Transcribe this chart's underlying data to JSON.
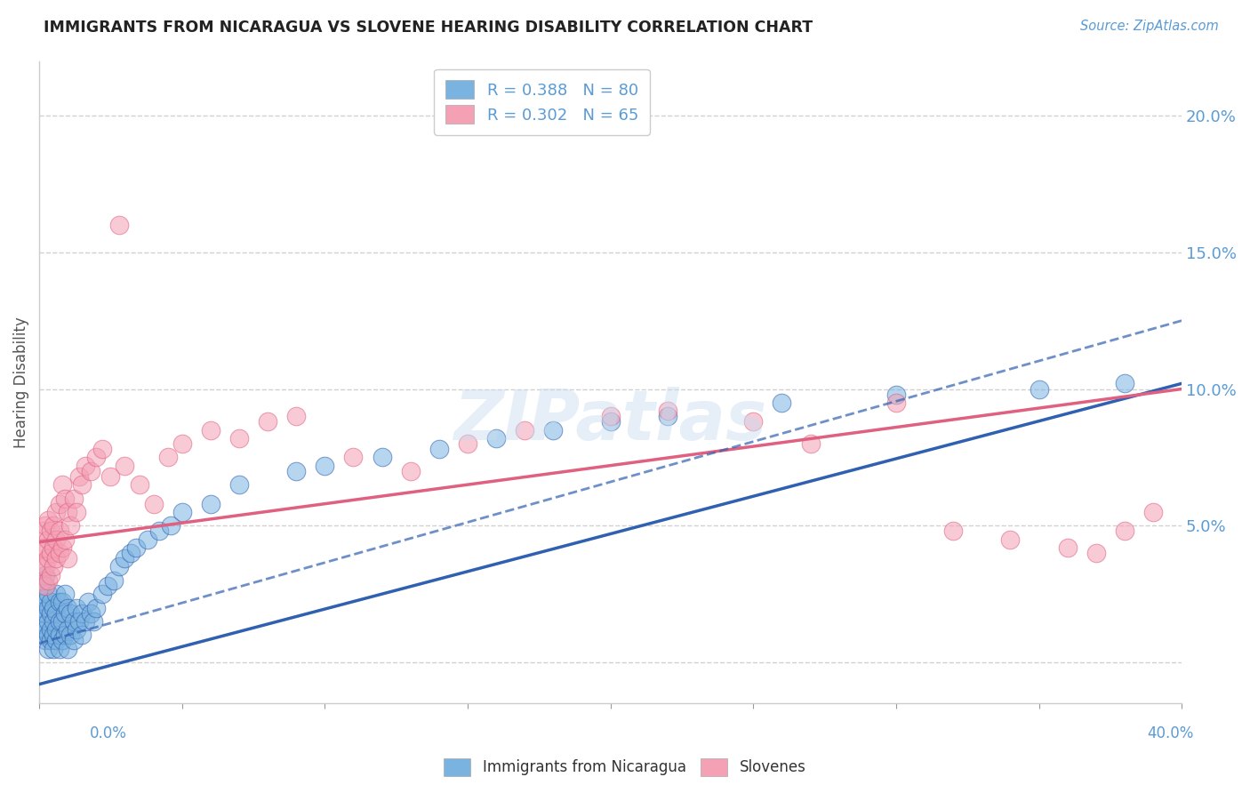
{
  "title": "IMMIGRANTS FROM NICARAGUA VS SLOVENE HEARING DISABILITY CORRELATION CHART",
  "source": "Source: ZipAtlas.com",
  "ylabel": "Hearing Disability",
  "xlim": [
    0.0,
    0.4
  ],
  "ylim": [
    -0.015,
    0.22
  ],
  "yticks": [
    0.0,
    0.05,
    0.1,
    0.15,
    0.2
  ],
  "ytick_labels": [
    "",
    "5.0%",
    "10.0%",
    "15.0%",
    "20.0%"
  ],
  "legend_r1": "R = 0.388   N = 80",
  "legend_r2": "R = 0.302   N = 65",
  "color_blue": "#7ab3e0",
  "color_pink": "#f4a0b5",
  "color_blue_line": "#3060b0",
  "color_pink_line": "#e06080",
  "color_text_blue": "#5b9bd5",
  "color_grid": "#cccccc",
  "background_color": "#ffffff",
  "nic_line_x0": 0.0,
  "nic_line_y0": -0.008,
  "nic_line_x1": 0.4,
  "nic_line_y1": 0.102,
  "slov_line_x0": 0.0,
  "slov_line_y0": 0.044,
  "slov_line_x1": 0.4,
  "slov_line_y1": 0.1,
  "nicaragua_x": [
    0.001,
    0.001,
    0.001,
    0.001,
    0.001,
    0.002,
    0.002,
    0.002,
    0.002,
    0.002,
    0.002,
    0.003,
    0.003,
    0.003,
    0.003,
    0.003,
    0.004,
    0.004,
    0.004,
    0.004,
    0.005,
    0.005,
    0.005,
    0.005,
    0.006,
    0.006,
    0.006,
    0.006,
    0.007,
    0.007,
    0.007,
    0.007,
    0.008,
    0.008,
    0.008,
    0.009,
    0.009,
    0.009,
    0.01,
    0.01,
    0.01,
    0.011,
    0.011,
    0.012,
    0.012,
    0.013,
    0.013,
    0.014,
    0.015,
    0.015,
    0.016,
    0.017,
    0.018,
    0.019,
    0.02,
    0.022,
    0.024,
    0.026,
    0.028,
    0.03,
    0.032,
    0.034,
    0.038,
    0.042,
    0.046,
    0.05,
    0.06,
    0.07,
    0.09,
    0.1,
    0.12,
    0.14,
    0.16,
    0.18,
    0.2,
    0.22,
    0.26,
    0.3,
    0.35,
    0.38
  ],
  "nicaragua_y": [
    0.01,
    0.015,
    0.02,
    0.025,
    0.03,
    0.008,
    0.012,
    0.018,
    0.022,
    0.028,
    0.032,
    0.005,
    0.01,
    0.015,
    0.02,
    0.025,
    0.008,
    0.012,
    0.018,
    0.022,
    0.005,
    0.01,
    0.015,
    0.02,
    0.008,
    0.012,
    0.018,
    0.025,
    0.005,
    0.01,
    0.015,
    0.022,
    0.008,
    0.015,
    0.022,
    0.01,
    0.018,
    0.025,
    0.005,
    0.012,
    0.02,
    0.01,
    0.018,
    0.008,
    0.015,
    0.012,
    0.02,
    0.015,
    0.01,
    0.018,
    0.015,
    0.022,
    0.018,
    0.015,
    0.02,
    0.025,
    0.028,
    0.03,
    0.035,
    0.038,
    0.04,
    0.042,
    0.045,
    0.048,
    0.05,
    0.055,
    0.058,
    0.065,
    0.07,
    0.072,
    0.075,
    0.078,
    0.082,
    0.085,
    0.088,
    0.09,
    0.095,
    0.098,
    0.1,
    0.102
  ],
  "slovene_x": [
    0.001,
    0.001,
    0.001,
    0.001,
    0.002,
    0.002,
    0.002,
    0.002,
    0.003,
    0.003,
    0.003,
    0.003,
    0.004,
    0.004,
    0.004,
    0.005,
    0.005,
    0.005,
    0.006,
    0.006,
    0.006,
    0.007,
    0.007,
    0.007,
    0.008,
    0.008,
    0.009,
    0.009,
    0.01,
    0.01,
    0.011,
    0.012,
    0.013,
    0.014,
    0.015,
    0.016,
    0.018,
    0.02,
    0.022,
    0.025,
    0.028,
    0.03,
    0.035,
    0.04,
    0.045,
    0.05,
    0.06,
    0.07,
    0.08,
    0.09,
    0.11,
    0.13,
    0.15,
    0.17,
    0.2,
    0.22,
    0.25,
    0.27,
    0.3,
    0.32,
    0.34,
    0.36,
    0.37,
    0.38,
    0.39
  ],
  "slovene_y": [
    0.03,
    0.035,
    0.042,
    0.048,
    0.028,
    0.035,
    0.042,
    0.05,
    0.03,
    0.038,
    0.045,
    0.052,
    0.032,
    0.04,
    0.048,
    0.035,
    0.042,
    0.05,
    0.038,
    0.045,
    0.055,
    0.04,
    0.048,
    0.058,
    0.042,
    0.065,
    0.045,
    0.06,
    0.038,
    0.055,
    0.05,
    0.06,
    0.055,
    0.068,
    0.065,
    0.072,
    0.07,
    0.075,
    0.078,
    0.068,
    0.16,
    0.072,
    0.065,
    0.058,
    0.075,
    0.08,
    0.085,
    0.082,
    0.088,
    0.09,
    0.075,
    0.07,
    0.08,
    0.085,
    0.09,
    0.092,
    0.088,
    0.08,
    0.095,
    0.048,
    0.045,
    0.042,
    0.04,
    0.048,
    0.055
  ]
}
